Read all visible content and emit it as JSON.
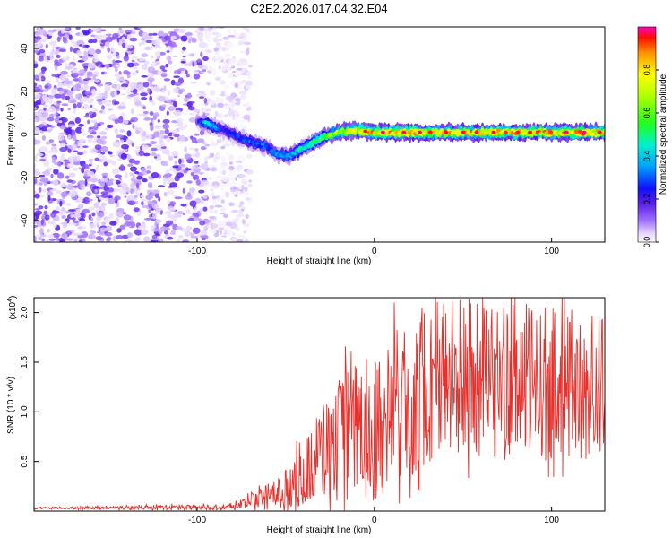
{
  "figure_title": "C2E2.2026.017.04.32.E04",
  "chart_data": [
    {
      "type": "heatmap",
      "title": "C2E2.2026.017.04.32.E04",
      "xlabel": "Height of straight line (km)",
      "ylabel": "Frequency (Hz)",
      "xlim": [
        -192,
        130
      ],
      "ylim": [
        -50,
        50
      ],
      "x_ticks": [
        -100,
        0,
        100
      ],
      "y_ticks": [
        -40,
        -20,
        0,
        20,
        40
      ],
      "colorbar": {
        "label": "Normalized spectral amplitude",
        "range": [
          0,
          1
        ],
        "ticks": [
          0.0,
          0.2,
          0.4,
          0.6,
          0.8
        ],
        "tick_labels": [
          "0.0",
          "0.2",
          "0.4",
          "0.6",
          "0.8"
        ]
      },
      "noise_region": {
        "x_from": -192,
        "x_to": -80,
        "amplitude": "0.0-0.15"
      },
      "ridge": [
        {
          "x": -100,
          "y": 6,
          "amp": 0.15
        },
        {
          "x": -95,
          "y": 5,
          "amp": 0.45
        },
        {
          "x": -85,
          "y": 2,
          "amp": 0.25
        },
        {
          "x": -75,
          "y": -2,
          "amp": 0.3
        },
        {
          "x": -68,
          "y": -4,
          "amp": 0.35
        },
        {
          "x": -60,
          "y": -6,
          "amp": 0.3
        },
        {
          "x": -55,
          "y": -9,
          "amp": 0.35
        },
        {
          "x": -48,
          "y": -10,
          "amp": 0.4
        },
        {
          "x": -42,
          "y": -7,
          "amp": 0.45
        },
        {
          "x": -35,
          "y": -4,
          "amp": 0.5
        },
        {
          "x": -28,
          "y": -1,
          "amp": 0.6
        },
        {
          "x": -20,
          "y": 1,
          "amp": 0.7
        },
        {
          "x": -10,
          "y": 2,
          "amp": 0.8
        },
        {
          "x": 0,
          "y": 1,
          "amp": 0.85
        },
        {
          "x": 20,
          "y": 1,
          "amp": 0.85
        },
        {
          "x": 40,
          "y": 1,
          "amp": 0.85
        },
        {
          "x": 60,
          "y": 1,
          "amp": 0.85
        },
        {
          "x": 80,
          "y": 1,
          "amp": 0.85
        },
        {
          "x": 100,
          "y": 1,
          "amp": 0.85
        },
        {
          "x": 130,
          "y": 1,
          "amp": 0.85
        }
      ]
    },
    {
      "type": "line",
      "xlabel": "Height of straight line (km)",
      "ylabel": "SNR (10 * v/v)",
      "y_scale_label": "(x10",
      "y_scale_exp": "4",
      "y_scale_close": ")",
      "xlim": [
        -192,
        130
      ],
      "ylim": [
        0,
        2.15
      ],
      "x_ticks": [
        -100,
        0,
        100
      ],
      "y_ticks": [
        0.5,
        1.0,
        1.5,
        2.0
      ],
      "y_tick_labels": [
        "0.5",
        "1.0",
        "1.5",
        "2.0"
      ],
      "series": [
        {
          "name": "SNR",
          "color": "#e8302c",
          "x": [
            -192,
            -80,
            -70,
            -60,
            -50,
            -40,
            -30,
            -20,
            -10,
            0,
            10,
            20,
            30,
            40,
            60,
            80,
            100,
            130
          ],
          "y": [
            0.03,
            0.04,
            0.1,
            0.16,
            0.22,
            0.35,
            0.6,
            0.72,
            0.8,
            0.85,
            1.0,
            1.15,
            1.3,
            1.35,
            1.32,
            1.3,
            1.28,
            1.25
          ],
          "spread": [
            0.01,
            0.03,
            0.08,
            0.12,
            0.2,
            0.3,
            0.5,
            0.65,
            0.7,
            0.75,
            0.8,
            0.85,
            0.85,
            0.85,
            0.82,
            0.8,
            0.78,
            0.75
          ]
        }
      ]
    }
  ]
}
